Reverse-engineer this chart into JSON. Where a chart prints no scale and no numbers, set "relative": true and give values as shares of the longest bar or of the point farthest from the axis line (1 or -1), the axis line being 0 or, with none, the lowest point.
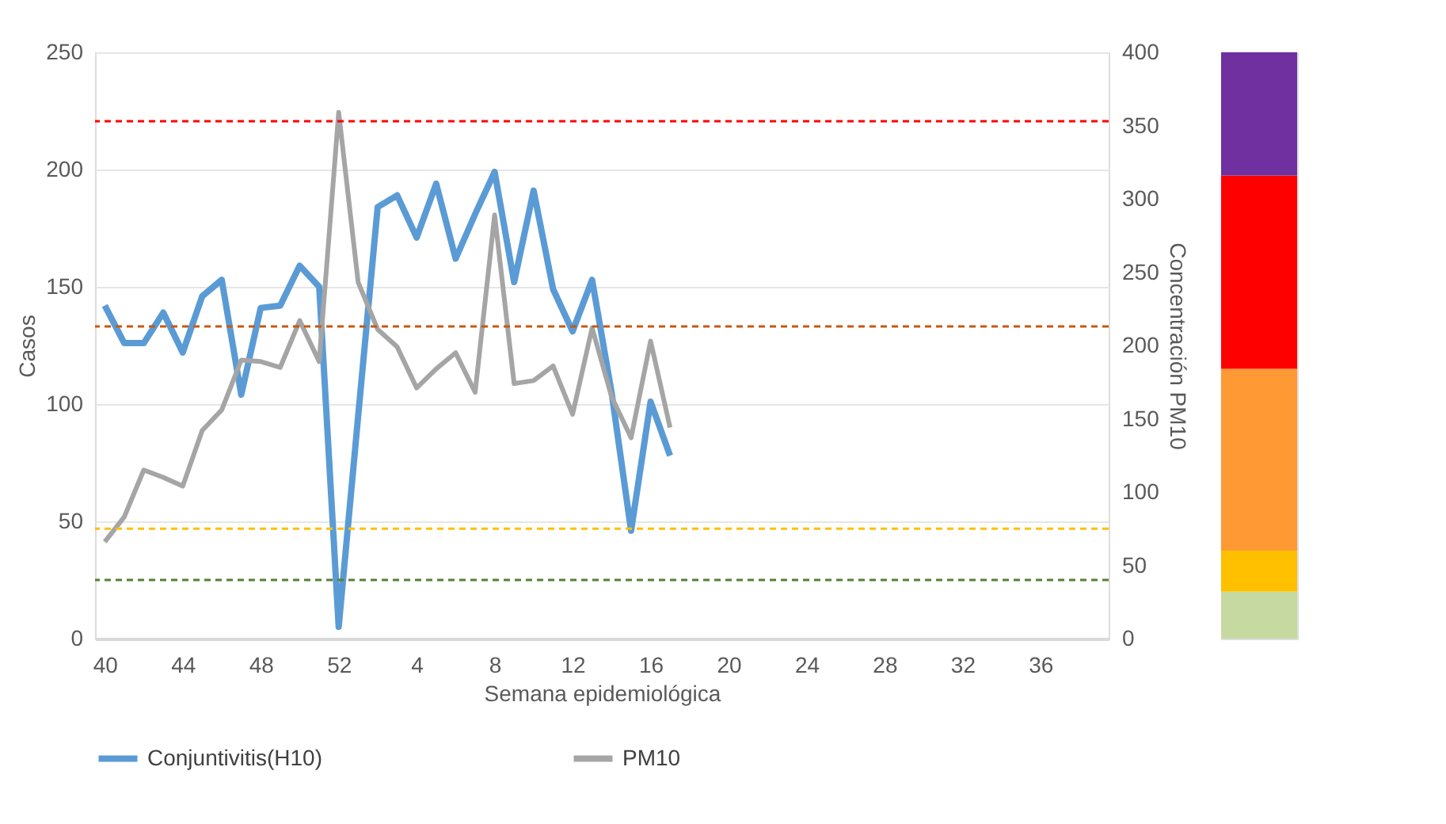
{
  "chart_data": [
    {
      "type": "line",
      "xlabel": "Semana epidemiológica",
      "ylabel": "Casos",
      "y2label": "Concentración PM10",
      "categories": [
        "40",
        null,
        null,
        null,
        "44",
        null,
        null,
        null,
        "48",
        null,
        null,
        null,
        "52",
        null,
        null,
        null,
        "4",
        null,
        null,
        null,
        "8",
        null,
        null,
        null,
        "12",
        null,
        null,
        null,
        "16",
        null,
        null,
        null,
        "20",
        null,
        null,
        null,
        "24",
        null,
        null,
        null,
        "28",
        null,
        null,
        null,
        "32",
        null,
        null,
        null,
        "36",
        null,
        null,
        null
      ],
      "series": [
        {
          "name": "Conjuntivitis(H10)",
          "color": "#5b9bd5",
          "values": [
            142,
            126,
            126,
            139,
            122,
            146,
            153,
            104,
            141,
            142,
            159,
            150,
            5,
            95,
            184,
            189,
            171,
            194,
            162,
            181,
            199,
            152,
            191,
            149,
            131,
            153,
            105,
            46,
            101,
            78,
            null,
            null,
            null,
            null,
            null,
            null,
            null,
            null,
            null,
            null,
            null,
            null,
            null,
            null,
            null,
            null,
            null,
            null,
            null,
            null,
            null,
            null
          ]
        },
        {
          "name": "PM10",
          "color": "#a5a5a5",
          "axis": "y2",
          "values": [
            66,
            83,
            115,
            110,
            104,
            142,
            156,
            190,
            189,
            185,
            217,
            189,
            359,
            243,
            211,
            199,
            171,
            184,
            195,
            168,
            289,
            174,
            176,
            186,
            153,
            212,
            165,
            137,
            203,
            144,
            null,
            null,
            null,
            null,
            null,
            null,
            null,
            null,
            null,
            null,
            null,
            null,
            null,
            null,
            null,
            null,
            null,
            null,
            null,
            null,
            null,
            null
          ]
        }
      ],
      "ylim": [
        0,
        250
      ],
      "yticks": [
        0,
        50,
        100,
        150,
        200,
        250
      ],
      "y2lim": [
        0,
        400
      ],
      "y2ticks": [
        0,
        50,
        100,
        150,
        200,
        250,
        300,
        350,
        400
      ],
      "grid": "y",
      "legend": "bottom",
      "line_style": "solid",
      "marker": "none",
      "ref_lines": [
        {
          "axis": "y2",
          "value": 353,
          "color": "#ff0000",
          "line_style": "dashed"
        },
        {
          "axis": "y2",
          "value": 213,
          "color": "#c55a11",
          "line_style": "dashed"
        },
        {
          "axis": "y2",
          "value": 75,
          "color": "#ffc000",
          "line_style": "dashed"
        },
        {
          "axis": "y2",
          "value": 40,
          "color": "#548235",
          "line_style": "dashed"
        }
      ]
    },
    {
      "type": "bar",
      "stacked": true,
      "relative": true,
      "categories": [
        null
      ],
      "tick_labels": false,
      "series": [
        {
          "color": "#c5d9a0",
          "values": [
            0.08
          ]
        },
        {
          "color": "#ffc000",
          "values": [
            0.07
          ]
        },
        {
          "color": "#ff9933",
          "values": [
            0.31
          ]
        },
        {
          "color": "#ff0000",
          "values": [
            0.33
          ]
        },
        {
          "color": "#7030a0",
          "values": [
            0.21
          ]
        }
      ]
    }
  ]
}
